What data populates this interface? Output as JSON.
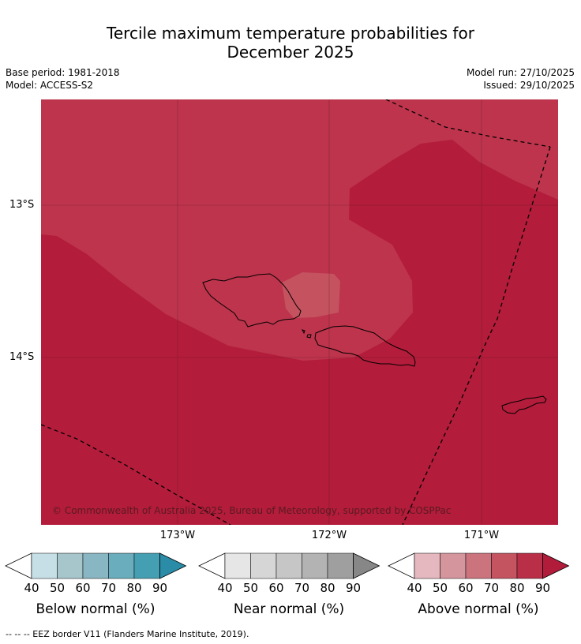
{
  "title": {
    "line1": "Tercile maximum temperature probabilities for",
    "line2": "December 2025"
  },
  "meta": {
    "base_period": "Base period: 1981-2018",
    "model": "Model: ACCESS-S2",
    "model_run": "Model run: 27/10/2025",
    "issued": "Issued: 29/10/2025"
  },
  "map": {
    "lat_labels": [
      "13°S",
      "14°S"
    ],
    "lon_labels": [
      "173°W",
      "172°W",
      "171°W"
    ],
    "copyright": "© Commonwealth of Australia 2025, Bureau of Meteorology, supported by COSPPac",
    "colors": {
      "above_90": "#b31c3a",
      "above_80": "#bd344c",
      "above_70": "#c5525f",
      "coastline": "#000000",
      "eez_border": "#000000"
    }
  },
  "legends": [
    {
      "title": "Below normal (%)",
      "ticks": [
        "40",
        "50",
        "60",
        "70",
        "80",
        "90"
      ],
      "colors": [
        "#c6dfe6",
        "#a6c6cc",
        "#88b6c3",
        "#6aaebd",
        "#459fb2",
        "#2a8ca6"
      ]
    },
    {
      "title": "Near normal (%)",
      "ticks": [
        "40",
        "50",
        "60",
        "70",
        "80",
        "90"
      ],
      "colors": [
        "#e6e6e6",
        "#d6d6d6",
        "#c6c6c6",
        "#b3b3b3",
        "#9f9f9f",
        "#878787"
      ]
    },
    {
      "title": "Above normal (%)",
      "ticks": [
        "40",
        "50",
        "60",
        "70",
        "80",
        "90"
      ],
      "colors": [
        "#e4b8be",
        "#d5959d",
        "#cc747d",
        "#c45460",
        "#ba2f48",
        "#b01c3a"
      ]
    }
  ],
  "footnote": "--  --  -- EEZ border V11 (Flanders Marine Institute, 2019)."
}
